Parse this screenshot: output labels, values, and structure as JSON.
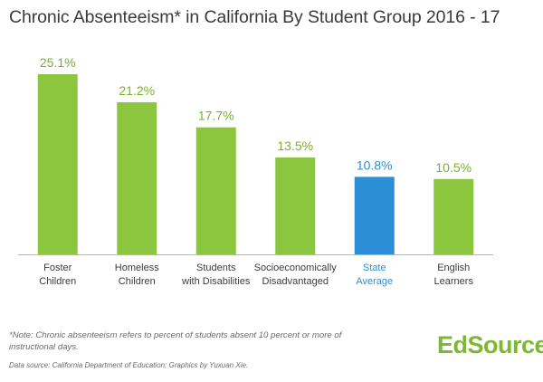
{
  "chart_data": {
    "type": "bar",
    "title": "Chronic Absenteeism* in California By Student Group 2016 - 17",
    "categories": [
      [
        "Foster",
        "Children"
      ],
      [
        "Homeless",
        "Children"
      ],
      [
        "Students",
        "with Disabilities"
      ],
      [
        "Socioeconomically",
        "Disadvantaged"
      ],
      [
        "State",
        "Average"
      ],
      [
        "English",
        "Learners"
      ]
    ],
    "values": [
      25.1,
      21.2,
      17.7,
      13.5,
      10.8,
      10.5
    ],
    "value_labels": [
      "25.1%",
      "21.2%",
      "17.7%",
      "13.5%",
      "10.8%",
      "10.5%"
    ],
    "unit": "%",
    "ylim": [
      0,
      25.1
    ],
    "grid": false,
    "colors": {
      "bar": "#8cc63f",
      "highlight_bar": "#2b8fd6",
      "value_label": "#79b030",
      "highlight_label": "#2b8fd6",
      "category_label": "#3c3c3c",
      "baseline": "#b5b5b5"
    },
    "highlight_index": 4
  },
  "footnote": "*Note: Chronic absenteeism refers to percent of students absent 10 percent or more of instructional days.",
  "data_source": "Data source: California Department of Education; Graphics by Yuxuan Xie.",
  "logo_text": "EdSource"
}
